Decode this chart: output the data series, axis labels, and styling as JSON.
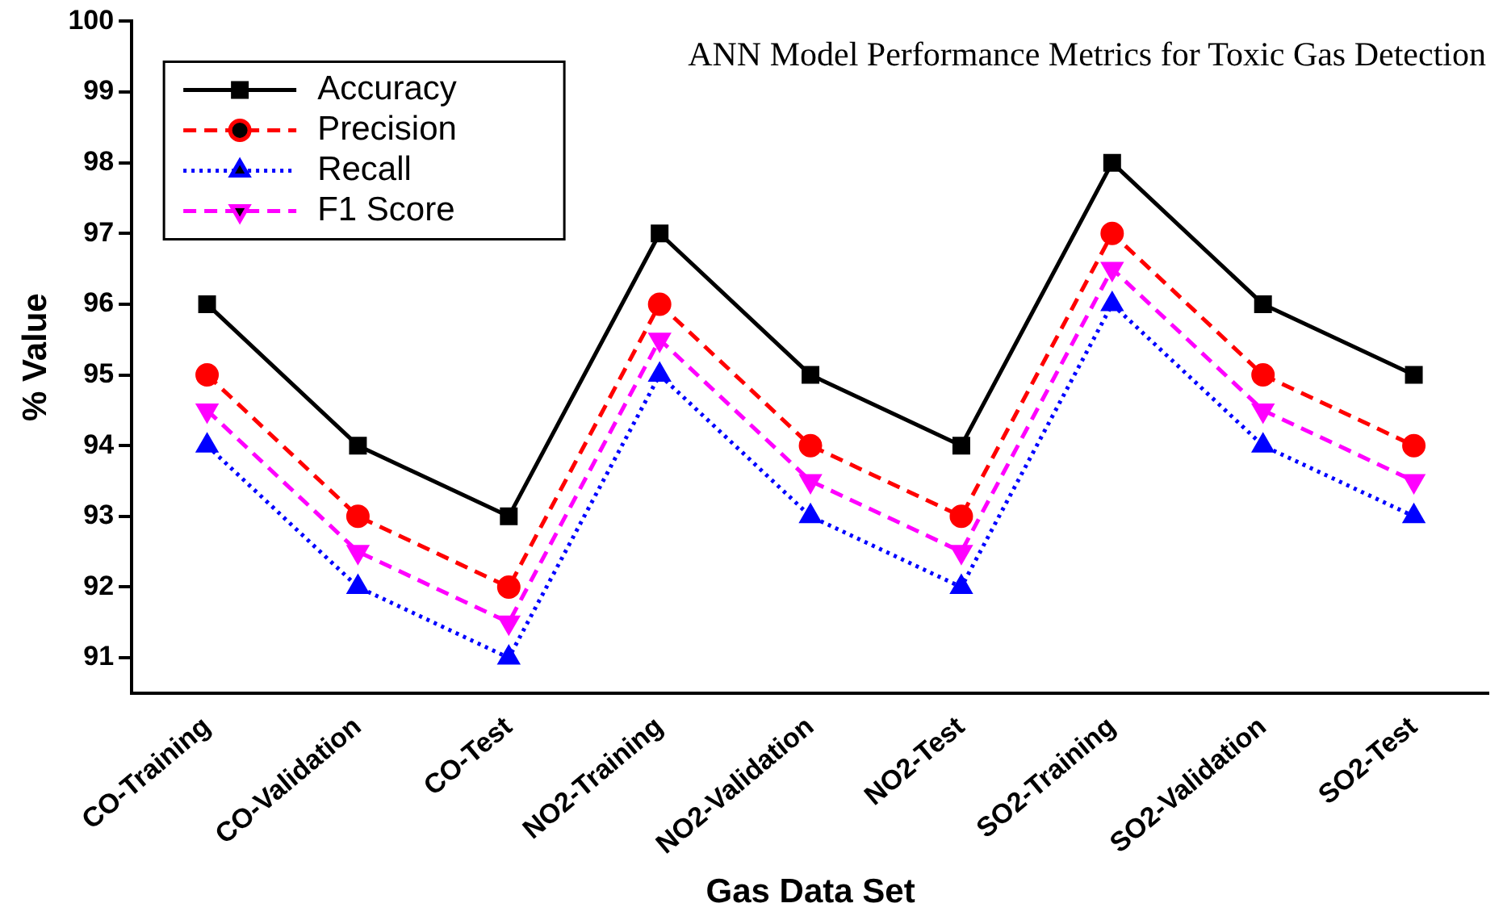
{
  "chart_data": {
    "type": "line",
    "title": "ANN Model Performance Metrics for Toxic Gas Detection",
    "xlabel": "Gas Data Set",
    "ylabel": "% Value",
    "categories": [
      "CO-Training",
      "CO-Validation",
      "CO-Test",
      "NO2-Training",
      "NO2-Validation",
      "NO2-Test",
      "SO2-Training",
      "SO2-Validation",
      "SO2-Test"
    ],
    "series": [
      {
        "name": "Accuracy",
        "color": "#000000",
        "marker": "square",
        "line_style": "solid",
        "values": [
          96,
          94,
          93,
          97,
          95,
          94,
          98,
          96,
          95
        ]
      },
      {
        "name": "Precision",
        "color": "#ff0000",
        "marker": "circle",
        "line_style": "dashed",
        "values": [
          95,
          93,
          92,
          96,
          94,
          93,
          97,
          95,
          94
        ]
      },
      {
        "name": "Recall",
        "color": "#0000ff",
        "marker": "triangle",
        "line_style": "dotted",
        "values": [
          94,
          92,
          91,
          95,
          93,
          92,
          96,
          94,
          93
        ]
      },
      {
        "name": "F1 Score",
        "color": "#ff00ff",
        "marker": "triangle-down",
        "line_style": "dashed",
        "values": [
          94.5,
          92.5,
          91.5,
          95.5,
          93.5,
          92.5,
          96.5,
          94.5,
          93.5
        ]
      }
    ],
    "ylim": [
      90.5,
      100
    ],
    "yticks": [
      91,
      92,
      93,
      94,
      95,
      96,
      97,
      98,
      99,
      100
    ],
    "grid": false,
    "legend": "top left"
  }
}
